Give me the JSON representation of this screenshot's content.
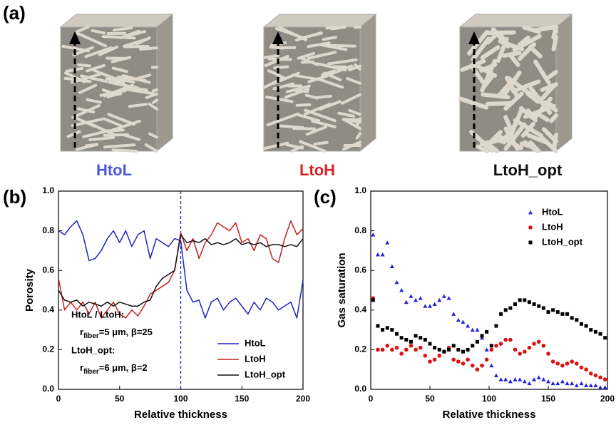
{
  "panel_a": {
    "label": "(a)",
    "structures": [
      {
        "name": "HtoL",
        "color": "#4a5ae0"
      },
      {
        "name": "LtoH",
        "color": "#d42424"
      },
      {
        "name": "LtoH_opt",
        "color": "#111111"
      }
    ]
  },
  "chart_data": [
    {
      "type": "line",
      "panel_label": "(b)",
      "x_label": "Relative thickness",
      "y_label": "Porosity",
      "x": [
        0,
        5,
        10,
        15,
        20,
        25,
        30,
        35,
        40,
        45,
        50,
        55,
        60,
        65,
        70,
        75,
        80,
        85,
        90,
        95,
        100,
        105,
        110,
        115,
        120,
        125,
        130,
        135,
        140,
        145,
        150,
        155,
        160,
        165,
        170,
        175,
        180,
        185,
        190,
        195,
        200
      ],
      "series": [
        {
          "name": "HtoL",
          "color": "#2323c0",
          "values": [
            0.8,
            0.78,
            0.82,
            0.85,
            0.78,
            0.65,
            0.66,
            0.7,
            0.76,
            0.8,
            0.74,
            0.8,
            0.72,
            0.78,
            0.8,
            0.66,
            0.76,
            0.74,
            0.72,
            0.76,
            0.75,
            0.5,
            0.44,
            0.45,
            0.36,
            0.44,
            0.46,
            0.4,
            0.44,
            0.46,
            0.42,
            0.38,
            0.44,
            0.4,
            0.46,
            0.44,
            0.4,
            0.42,
            0.44,
            0.36,
            0.55
          ]
        },
        {
          "name": "LtoH",
          "color": "#c42020",
          "values": [
            0.56,
            0.4,
            0.44,
            0.4,
            0.44,
            0.38,
            0.44,
            0.36,
            0.4,
            0.44,
            0.38,
            0.36,
            0.4,
            0.37,
            0.42,
            0.48,
            0.5,
            0.52,
            0.54,
            0.6,
            0.79,
            0.7,
            0.76,
            0.66,
            0.74,
            0.78,
            0.84,
            0.82,
            0.8,
            0.84,
            0.74,
            0.76,
            0.7,
            0.78,
            0.76,
            0.66,
            0.64,
            0.76,
            0.85,
            0.78,
            0.81
          ]
        },
        {
          "name": "LtoH_opt",
          "color": "#111111",
          "values": [
            0.5,
            0.45,
            0.44,
            0.45,
            0.42,
            0.44,
            0.43,
            0.42,
            0.44,
            0.42,
            0.44,
            0.43,
            0.42,
            0.42,
            0.44,
            0.45,
            0.52,
            0.56,
            0.58,
            0.6,
            0.78,
            0.74,
            0.75,
            0.74,
            0.76,
            0.73,
            0.74,
            0.73,
            0.74,
            0.76,
            0.73,
            0.74,
            0.73,
            0.74,
            0.72,
            0.73,
            0.73,
            0.72,
            0.73,
            0.72,
            0.76
          ]
        }
      ],
      "reference_line": {
        "x": 100,
        "color": "#2323c0",
        "dashed": true
      },
      "annotations": [
        {
          "text": "HtoL / LtoH:"
        },
        {
          "base": "r",
          "sub": "fiber",
          "rest": "=5 μm, β=25"
        },
        {
          "text": "LtoH_opt:"
        },
        {
          "base": "r",
          "sub": "fiber",
          "rest": "=6 μm, β=2"
        }
      ],
      "xlim": [
        0,
        200
      ],
      "xticks": [
        0,
        50,
        100,
        150,
        200
      ],
      "ylim": [
        0,
        1
      ],
      "yticks": [
        {
          "value": 0,
          "label": "0.0"
        },
        {
          "value": 0.2,
          "label": "0.2"
        },
        {
          "value": 0.4,
          "label": "0.4"
        },
        {
          "value": 0.6,
          "label": "0.6"
        },
        {
          "value": 0.8,
          "label": "0.8"
        },
        {
          "value": 1,
          "label": "1.0"
        }
      ],
      "legend": "lower right"
    },
    {
      "type": "scatter",
      "panel_label": "(c)",
      "x_label": "Relative thickness",
      "y_label": "Gas saturation",
      "x": [
        2,
        6,
        10,
        14,
        18,
        22,
        26,
        30,
        34,
        38,
        42,
        46,
        50,
        54,
        58,
        62,
        66,
        70,
        74,
        78,
        82,
        86,
        90,
        94,
        98,
        102,
        106,
        110,
        114,
        118,
        122,
        126,
        130,
        134,
        138,
        142,
        146,
        150,
        154,
        158,
        162,
        166,
        170,
        174,
        178,
        182,
        186,
        190,
        194,
        198
      ],
      "series": [
        {
          "name": "HtoL",
          "color": "#2323e0",
          "marker": "triangle",
          "values": [
            0.78,
            0.68,
            0.68,
            0.74,
            0.62,
            0.54,
            0.5,
            0.44,
            0.47,
            0.45,
            0.46,
            0.42,
            0.42,
            0.43,
            0.45,
            0.47,
            0.46,
            0.38,
            0.35,
            0.34,
            0.32,
            0.3,
            0.3,
            0.26,
            0.2,
            0.12,
            0.07,
            0.05,
            0.05,
            0.04,
            0.05,
            0.05,
            0.04,
            0.03,
            0.05,
            0.06,
            0.05,
            0.04,
            0.03,
            0.03,
            0.04,
            0.03,
            0.03,
            0.02,
            0.03,
            0.02,
            0.02,
            0.02,
            0.01,
            0.01
          ]
        },
        {
          "name": "LtoH",
          "color": "#e01010",
          "marker": "circle",
          "values": [
            0.46,
            0.2,
            0.2,
            0.22,
            0.2,
            0.21,
            0.18,
            0.2,
            0.22,
            0.2,
            0.21,
            0.17,
            0.14,
            0.15,
            0.17,
            0.19,
            0.21,
            0.15,
            0.14,
            0.13,
            0.15,
            0.12,
            0.1,
            0.12,
            0.15,
            0.2,
            0.22,
            0.23,
            0.25,
            0.25,
            0.2,
            0.18,
            0.19,
            0.21,
            0.23,
            0.24,
            0.22,
            0.18,
            0.14,
            0.13,
            0.12,
            0.13,
            0.14,
            0.13,
            0.11,
            0.1,
            0.08,
            0.07,
            0.06,
            0.05
          ]
        },
        {
          "name": "LtoH_opt",
          "color": "#000000",
          "marker": "square",
          "values": [
            0.45,
            0.32,
            0.3,
            0.31,
            0.3,
            0.28,
            0.26,
            0.25,
            0.24,
            0.27,
            0.26,
            0.25,
            0.23,
            0.21,
            0.2,
            0.19,
            0.2,
            0.22,
            0.2,
            0.19,
            0.2,
            0.22,
            0.24,
            0.27,
            0.29,
            0.22,
            0.32,
            0.38,
            0.4,
            0.41,
            0.43,
            0.45,
            0.45,
            0.44,
            0.43,
            0.42,
            0.41,
            0.39,
            0.4,
            0.39,
            0.38,
            0.38,
            0.36,
            0.35,
            0.33,
            0.32,
            0.3,
            0.29,
            0.28,
            0.26
          ]
        }
      ],
      "xlim": [
        0,
        200
      ],
      "xticks": [
        0,
        50,
        100,
        150,
        200
      ],
      "ylim": [
        0,
        1
      ],
      "yticks": [
        {
          "value": 0,
          "label": "0.0"
        },
        {
          "value": 0.2,
          "label": "0.2"
        },
        {
          "value": 0.4,
          "label": "0.4"
        },
        {
          "value": 0.6,
          "label": "0.6"
        },
        {
          "value": 0.8,
          "label": "0.8"
        },
        {
          "value": 1,
          "label": "1.0"
        }
      ],
      "legend": "upper right"
    }
  ]
}
